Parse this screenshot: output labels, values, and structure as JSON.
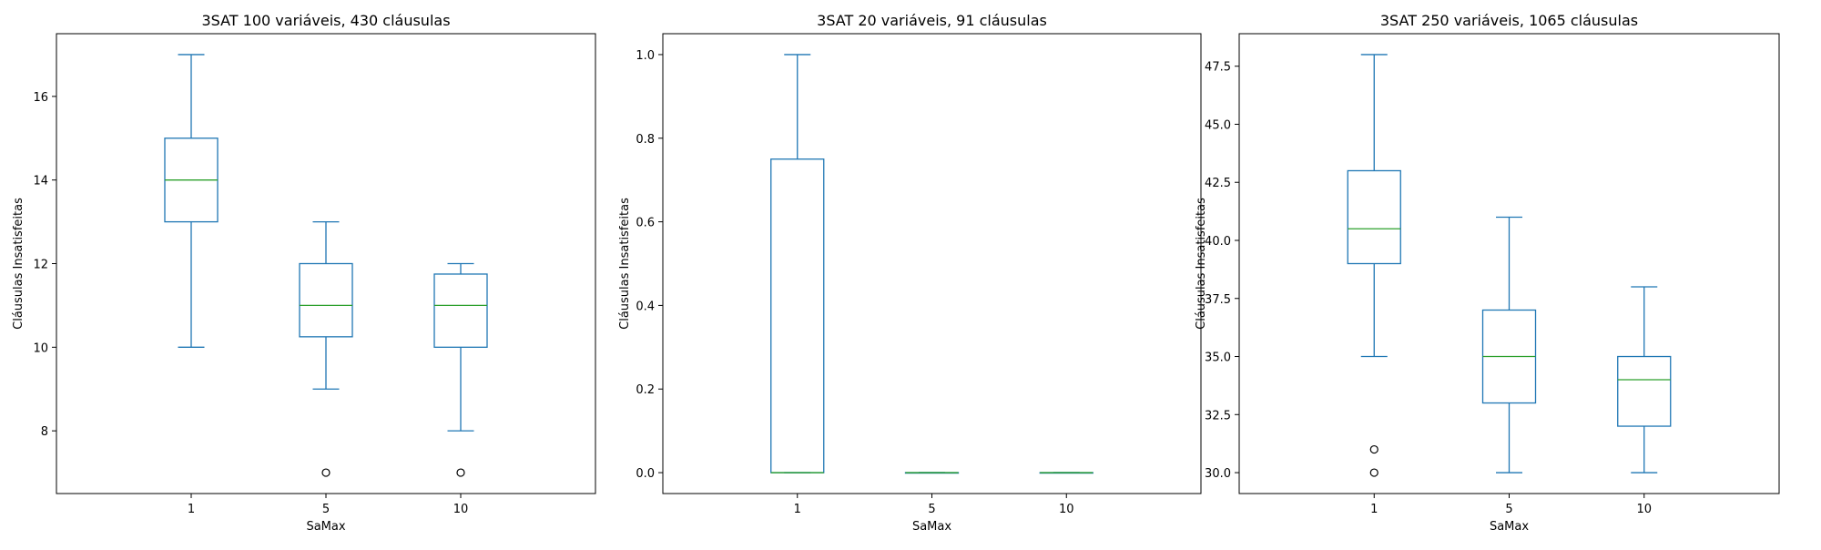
{
  "chart_data": [
    {
      "type": "box",
      "title": "3SAT 100 variáveis, 430 cláusulas",
      "xlabel": "SaMax",
      "ylabel": "Cláusulas Insatisfeitas",
      "categories": [
        "1",
        "5",
        "10"
      ],
      "ylim": [
        6.5,
        17.5
      ],
      "yticks": [
        8,
        10,
        12,
        14,
        16
      ],
      "ytick_labels": [
        "8",
        "10",
        "12",
        "14",
        "16"
      ],
      "boxes": [
        {
          "whisker_low": 10,
          "q1": 13,
          "median": 14,
          "q3": 15,
          "whisker_high": 17,
          "outliers": []
        },
        {
          "whisker_low": 9,
          "q1": 10.25,
          "median": 11,
          "q3": 12,
          "whisker_high": 13,
          "outliers": [
            7
          ]
        },
        {
          "whisker_low": 8,
          "q1": 10,
          "median": 11,
          "q3": 11.75,
          "whisker_high": 12,
          "outliers": [
            7
          ]
        }
      ]
    },
    {
      "type": "box",
      "title": "3SAT 20 variáveis, 91 cláusulas",
      "xlabel": "SaMax",
      "ylabel": "Cláusulas Insatisfeitas",
      "categories": [
        "1",
        "5",
        "10"
      ],
      "ylim": [
        -0.05,
        1.05
      ],
      "yticks": [
        0.0,
        0.2,
        0.4,
        0.6,
        0.8,
        1.0
      ],
      "ytick_labels": [
        "0.0",
        "0.2",
        "0.4",
        "0.6",
        "0.8",
        "1.0"
      ],
      "boxes": [
        {
          "whisker_low": 0,
          "q1": 0,
          "median": 0,
          "q3": 0.75,
          "whisker_high": 1,
          "outliers": []
        },
        {
          "whisker_low": 0,
          "q1": 0,
          "median": 0,
          "q3": 0,
          "whisker_high": 0,
          "outliers": []
        },
        {
          "whisker_low": 0,
          "q1": 0,
          "median": 0,
          "q3": 0,
          "whisker_high": 0,
          "outliers": []
        }
      ]
    },
    {
      "type": "box",
      "title": "3SAT 250 variáveis, 1065 cláusulas",
      "xlabel": "SaMax",
      "ylabel": "Cláusulas Insatisfeitas",
      "categories": [
        "1",
        "5",
        "10"
      ],
      "ylim": [
        29.1,
        48.9
      ],
      "yticks": [
        30.0,
        32.5,
        35.0,
        37.5,
        40.0,
        42.5,
        45.0,
        47.5
      ],
      "ytick_labels": [
        "30.0",
        "32.5",
        "35.0",
        "37.5",
        "40.0",
        "42.5",
        "45.0",
        "47.5"
      ],
      "boxes": [
        {
          "whisker_low": 35,
          "q1": 39,
          "median": 40.5,
          "q3": 43,
          "whisker_high": 48,
          "outliers": [
            30,
            31
          ]
        },
        {
          "whisker_low": 30,
          "q1": 33,
          "median": 35,
          "q3": 37,
          "whisker_high": 41,
          "outliers": []
        },
        {
          "whisker_low": 30,
          "q1": 32,
          "median": 34,
          "q3": 35,
          "whisker_high": 38,
          "outliers": []
        }
      ]
    }
  ],
  "colors": {
    "box": "#1f77b4",
    "median": "#2ca02c",
    "axis": "#000000"
  }
}
